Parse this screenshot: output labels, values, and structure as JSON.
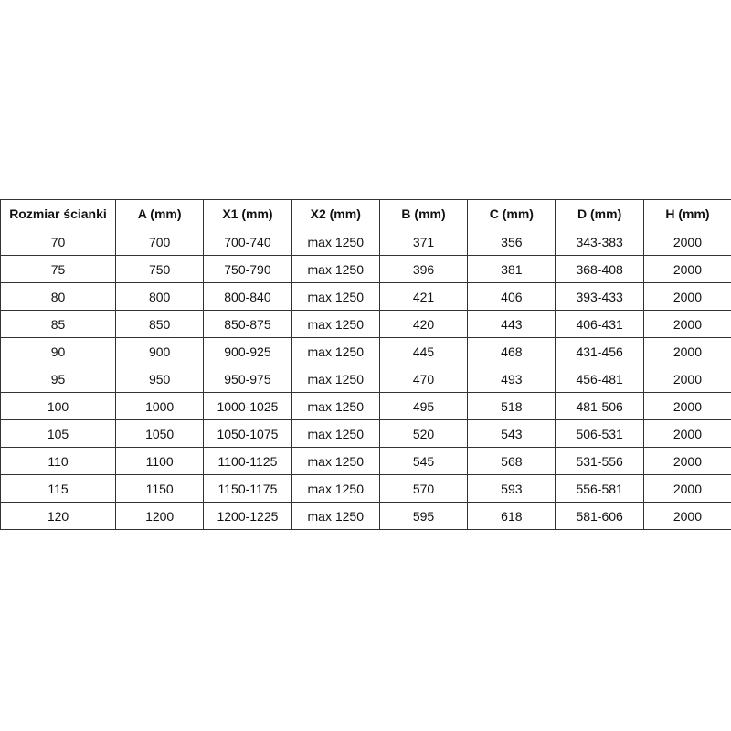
{
  "table": {
    "headers": [
      "Rozmiar ścianki",
      "A (mm)",
      "X1 (mm)",
      "X2 (mm)",
      "B (mm)",
      "C (mm)",
      "D (mm)",
      "H (mm)"
    ],
    "rows": [
      [
        "70",
        "700",
        "700-740",
        "max 1250",
        "371",
        "356",
        "343-383",
        "2000"
      ],
      [
        "75",
        "750",
        "750-790",
        "max 1250",
        "396",
        "381",
        "368-408",
        "2000"
      ],
      [
        "80",
        "800",
        "800-840",
        "max 1250",
        "421",
        "406",
        "393-433",
        "2000"
      ],
      [
        "85",
        "850",
        "850-875",
        "max 1250",
        "420",
        "443",
        "406-431",
        "2000"
      ],
      [
        "90",
        "900",
        "900-925",
        "max 1250",
        "445",
        "468",
        "431-456",
        "2000"
      ],
      [
        "95",
        "950",
        "950-975",
        "max 1250",
        "470",
        "493",
        "456-481",
        "2000"
      ],
      [
        "100",
        "1000",
        "1000-1025",
        "max 1250",
        "495",
        "518",
        "481-506",
        "2000"
      ],
      [
        "105",
        "1050",
        "1050-1075",
        "max 1250",
        "520",
        "543",
        "506-531",
        "2000"
      ],
      [
        "110",
        "1100",
        "1100-1125",
        "max 1250",
        "545",
        "568",
        "531-556",
        "2000"
      ],
      [
        "115",
        "1150",
        "1150-1175",
        "max 1250",
        "570",
        "593",
        "556-581",
        "2000"
      ],
      [
        "120",
        "1200",
        "1200-1225",
        "max 1250",
        "595",
        "618",
        "581-606",
        "2000"
      ]
    ]
  }
}
